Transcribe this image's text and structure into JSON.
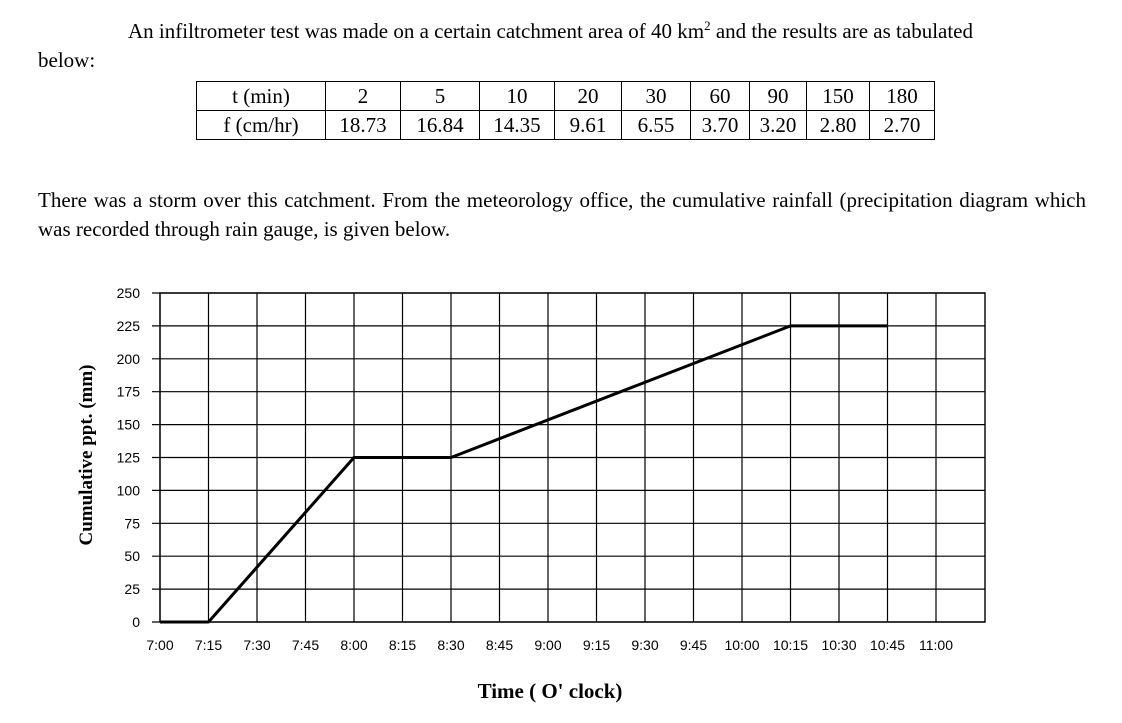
{
  "intro": {
    "line1_pre": "An infiltrometer test was made on a certain catchment area of 40 km",
    "line1_sup": "2",
    "line1_post": " and the results are as tabulated",
    "line2": "below:"
  },
  "table": {
    "row1_header": "t (min)",
    "row2_header": "f (cm/hr)",
    "t": [
      "2",
      "5",
      "10",
      "20",
      "30",
      "60",
      "90",
      "150",
      "180"
    ],
    "f": [
      "18.73",
      "16.84",
      "14.35",
      "9.61",
      "6.55",
      "3.70",
      "3.20",
      "2.80",
      "2.70"
    ]
  },
  "paragraph2": "There was a storm over this catchment. From the meteorology office, the cumulative rainfall (precipitation diagram which was recorded through rain gauge, is given below.",
  "chart_data": {
    "type": "line",
    "title": "",
    "xlabel": "Time ( O' clock)",
    "ylabel": "Cumulative ppt. (mm)",
    "x_tick_labels": [
      "7:00",
      "7:15",
      "7:30",
      "7:45",
      "8:00",
      "8:15",
      "8:30",
      "8:45",
      "9:00",
      "9:15",
      "9:30",
      "9:45",
      "10:00",
      "10:15",
      "10:30",
      "10:45",
      "11:00"
    ],
    "y_ticks": [
      0,
      25,
      50,
      75,
      100,
      125,
      150,
      175,
      200,
      225,
      250
    ],
    "ylim": [
      0,
      250
    ],
    "grid": true,
    "series": [
      {
        "x": [
          "7:00",
          "7:15",
          "8:00",
          "8:30",
          "10:15",
          "10:45"
        ],
        "y": [
          0,
          0,
          125,
          125,
          225,
          225
        ]
      }
    ]
  }
}
